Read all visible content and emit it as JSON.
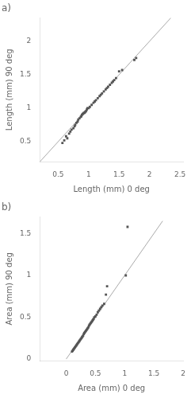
{
  "chart_data": [
    {
      "type": "scatter",
      "title": "a)",
      "xlabel": "Length (mm) 0 deg",
      "ylabel": "Length (mm) 90 deg",
      "xlim": [
        0.2,
        2.55
      ],
      "ylim": [
        0.2,
        2.35
      ],
      "xticks": [
        0.5,
        1,
        1.5,
        2,
        2.5
      ],
      "yticks": [
        0.5,
        1,
        1.5,
        2
      ],
      "grid": false,
      "series": [
        {
          "type": "line",
          "color": "#aaaaaa",
          "line_style": "solid",
          "x": [
            0.2,
            2.35
          ],
          "values": [
            0.2,
            2.35
          ]
        },
        {
          "type": "scatter",
          "color": "#555555",
          "marker": "square",
          "x": [
            0.57,
            0.6,
            0.63,
            0.65,
            0.68,
            0.7,
            0.72,
            0.75,
            0.77,
            0.78,
            0.8,
            0.82,
            0.83,
            0.85,
            0.87,
            0.88,
            0.89,
            0.9,
            0.91,
            0.92,
            0.93,
            0.94,
            0.95,
            0.96,
            0.97,
            0.98,
            1.0,
            1.02,
            1.05,
            1.08,
            1.1,
            1.12,
            1.15,
            1.18,
            1.2,
            1.22,
            1.25,
            1.28,
            1.3,
            1.32,
            1.35,
            1.38,
            1.4,
            1.42,
            1.45,
            1.5,
            1.55,
            1.75,
            1.78
          ],
          "values": [
            0.48,
            0.52,
            0.58,
            0.55,
            0.62,
            0.65,
            0.68,
            0.7,
            0.73,
            0.75,
            0.78,
            0.8,
            0.83,
            0.85,
            0.87,
            0.88,
            0.9,
            0.91,
            0.92,
            0.93,
            0.93,
            0.94,
            0.95,
            0.96,
            0.98,
            1.0,
            1.0,
            1.02,
            1.05,
            1.08,
            1.1,
            1.12,
            1.15,
            1.18,
            1.2,
            1.22,
            1.25,
            1.28,
            1.3,
            1.32,
            1.35,
            1.38,
            1.4,
            1.42,
            1.45,
            1.55,
            1.57,
            1.72,
            1.75
          ]
        }
      ]
    },
    {
      "type": "scatter",
      "title": "b)",
      "xlabel": "Area (mm) 0 deg",
      "ylabel": "Area (mm) 90 deg",
      "xlim": [
        -0.45,
        2.0
      ],
      "ylim": [
        -0.02,
        1.7
      ],
      "xticks": [
        0,
        0.5,
        1,
        1.5,
        2
      ],
      "yticks": [
        0,
        0.5,
        1,
        1.5
      ],
      "grid": false,
      "series": [
        {
          "type": "line",
          "color": "#aaaaaa",
          "line_style": "solid",
          "x": [
            0.0,
            1.65
          ],
          "values": [
            0.0,
            1.65
          ]
        },
        {
          "type": "scatter",
          "color": "#555555",
          "marker": "square",
          "x": [
            0.1,
            0.11,
            0.12,
            0.13,
            0.14,
            0.15,
            0.16,
            0.17,
            0.18,
            0.19,
            0.2,
            0.21,
            0.22,
            0.23,
            0.24,
            0.25,
            0.26,
            0.27,
            0.28,
            0.29,
            0.3,
            0.31,
            0.32,
            0.33,
            0.34,
            0.35,
            0.36,
            0.37,
            0.38,
            0.39,
            0.4,
            0.41,
            0.42,
            0.43,
            0.44,
            0.45,
            0.46,
            0.47,
            0.48,
            0.5,
            0.52,
            0.54,
            0.56,
            0.58,
            0.6,
            0.62,
            0.65,
            0.68,
            0.7,
            1.02,
            1.05
          ],
          "values": [
            0.09,
            0.1,
            0.11,
            0.12,
            0.13,
            0.14,
            0.15,
            0.16,
            0.17,
            0.18,
            0.19,
            0.2,
            0.21,
            0.22,
            0.23,
            0.24,
            0.25,
            0.26,
            0.27,
            0.28,
            0.3,
            0.31,
            0.32,
            0.33,
            0.34,
            0.35,
            0.36,
            0.37,
            0.38,
            0.4,
            0.41,
            0.42,
            0.43,
            0.44,
            0.45,
            0.46,
            0.47,
            0.48,
            0.5,
            0.51,
            0.53,
            0.56,
            0.58,
            0.6,
            0.62,
            0.64,
            0.66,
            0.77,
            0.87,
            1.0,
            1.58
          ]
        }
      ]
    }
  ]
}
